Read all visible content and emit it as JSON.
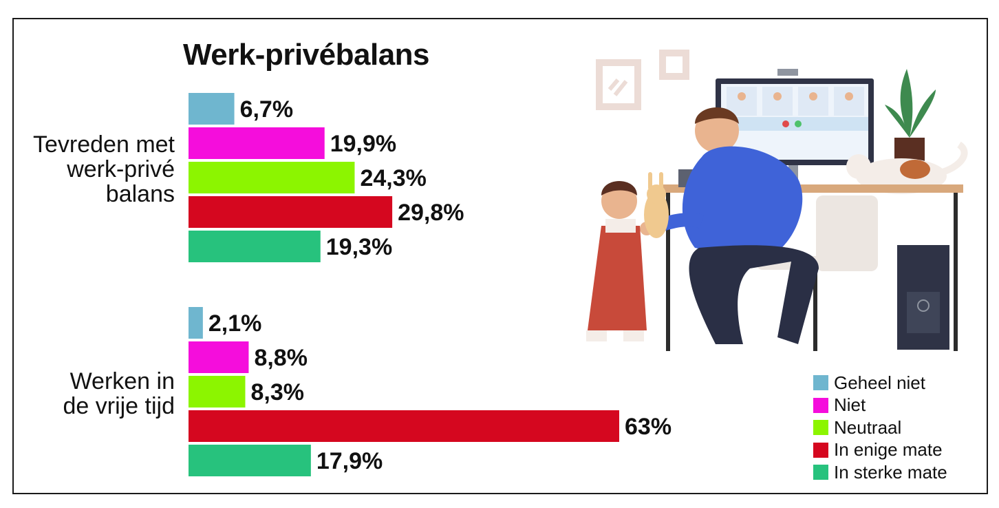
{
  "title": "Werk-privébalans",
  "chart_data": {
    "type": "bar",
    "orientation": "horizontal",
    "title": "Werk-privébalans",
    "categories": [
      "Tevreden met\nwerk-privé\nbalans",
      "Werken in\nde vrije tijd"
    ],
    "series": [
      {
        "name": "Geheel niet",
        "color": "#6fb6cf",
        "values": [
          6.7,
          2.1
        ],
        "labels": [
          "6,7%",
          "2,1%"
        ]
      },
      {
        "name": "Niet",
        "color": "#f50ddc",
        "values": [
          19.9,
          8.8
        ],
        "labels": [
          "19,9%",
          "8,8%"
        ]
      },
      {
        "name": "Neutraal",
        "color": "#8cf500",
        "values": [
          24.3,
          8.3
        ],
        "labels": [
          "24,3%",
          "8,3%"
        ]
      },
      {
        "name": "In enige mate",
        "color": "#d5071f",
        "values": [
          29.8,
          63
        ],
        "labels": [
          "29,8%",
          "63%"
        ]
      },
      {
        "name": "In sterke mate",
        "color": "#27c27d",
        "values": [
          19.3,
          17.9
        ],
        "labels": [
          "19,3%",
          "17,9%"
        ]
      }
    ],
    "legend": "bottom-right",
    "grid": false,
    "xlim": [
      0,
      63
    ]
  }
}
